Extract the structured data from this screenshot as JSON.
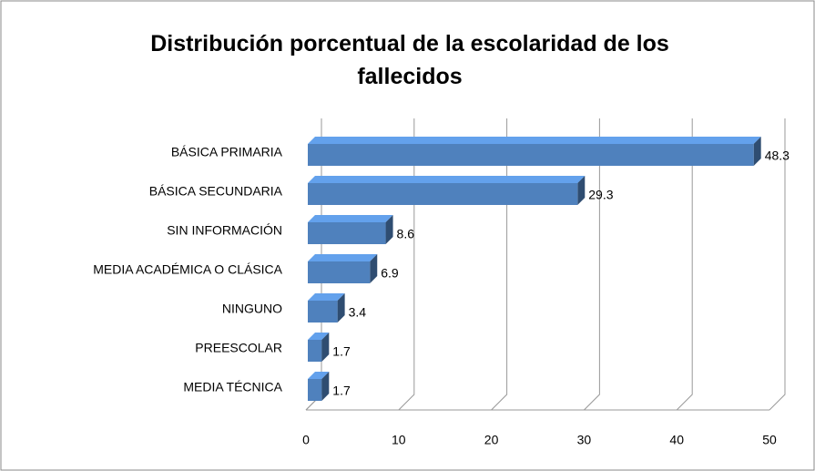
{
  "chart_data": {
    "type": "bar",
    "orientation": "horizontal",
    "title": "Distribución porcentual de la escolaridad de los fallecidos",
    "categories": [
      "BÁSICA PRIMARIA",
      "BÁSICA SECUNDARIA",
      "SIN INFORMACIÓN",
      "MEDIA ACADÉMICA O CLÁSICA",
      "NINGUNO",
      "PREESCOLAR",
      "MEDIA TÉCNICA"
    ],
    "values": [
      48.3,
      29.3,
      8.6,
      6.9,
      3.4,
      1.7,
      1.7
    ],
    "color": "#4f81bd",
    "xlim": [
      0,
      50
    ],
    "xticks": [
      0,
      10,
      20,
      30,
      40,
      50
    ],
    "grid": true
  }
}
